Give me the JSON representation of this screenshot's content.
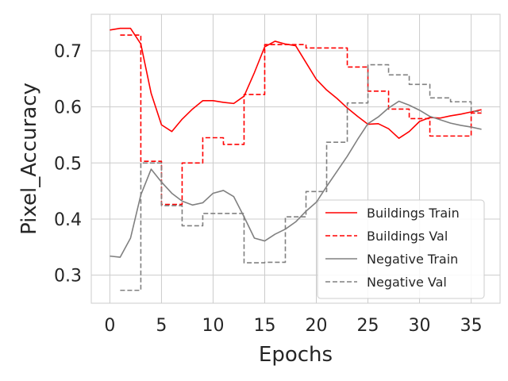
{
  "chart_data": {
    "type": "line",
    "xlabel": "Epochs",
    "ylabel": "Pixel_Accuracy",
    "xlim": [
      -1.8,
      37.8
    ],
    "ylim": [
      0.25,
      0.765
    ],
    "xticks": [
      0,
      5,
      10,
      15,
      20,
      25,
      30,
      35
    ],
    "yticks": [
      0.3,
      0.4,
      0.5,
      0.6,
      0.7
    ],
    "x_tick_labels": [
      "0",
      "5",
      "10",
      "15",
      "20",
      "25",
      "30",
      "35"
    ],
    "y_tick_labels": [
      "0.3",
      "0.4",
      "0.5",
      "0.6",
      "0.7"
    ],
    "grid": true,
    "legend_position": "lower-right",
    "x": [
      0,
      1,
      2,
      3,
      4,
      5,
      6,
      7,
      8,
      9,
      10,
      11,
      12,
      13,
      14,
      15,
      16,
      17,
      18,
      19,
      20,
      21,
      22,
      23,
      24,
      25,
      26,
      27,
      28,
      29,
      30,
      31,
      32,
      33,
      34,
      35,
      36
    ],
    "series": [
      {
        "name": "Buildings Train",
        "color": "#ff0000",
        "dash": "solid",
        "values": [
          0.737,
          0.74,
          0.74,
          0.712,
          0.624,
          0.568,
          0.556,
          0.578,
          0.596,
          0.611,
          0.611,
          0.608,
          0.606,
          0.619,
          0.661,
          0.707,
          0.717,
          0.712,
          0.709,
          0.679,
          0.649,
          0.63,
          0.615,
          0.598,
          0.583,
          0.569,
          0.57,
          0.561,
          0.544,
          0.556,
          0.574,
          0.581,
          0.58,
          0.584,
          0.587,
          0.591,
          0.595
        ]
      },
      {
        "name": "Buildings Val",
        "color": "#ff0000",
        "dash": "dashed",
        "values": [
          null,
          0.728,
          0.728,
          0.503,
          0.503,
          0.426,
          0.426,
          0.5,
          0.5,
          0.545,
          0.545,
          0.533,
          0.533,
          0.622,
          0.622,
          0.711,
          0.711,
          0.711,
          0.711,
          0.705,
          0.705,
          0.705,
          0.705,
          0.671,
          0.671,
          0.628,
          0.628,
          0.596,
          0.596,
          0.579,
          0.579,
          0.548,
          0.548,
          0.548,
          0.548,
          0.589,
          0.589
        ]
      },
      {
        "name": "Negative Train",
        "color": "#808080",
        "dash": "solid",
        "values": [
          0.334,
          0.332,
          0.366,
          0.443,
          0.489,
          0.466,
          0.446,
          0.432,
          0.425,
          0.429,
          0.446,
          0.451,
          0.44,
          0.404,
          0.366,
          0.361,
          0.373,
          0.382,
          0.395,
          0.414,
          0.43,
          0.458,
          0.485,
          0.512,
          0.542,
          0.57,
          0.582,
          0.598,
          0.61,
          0.603,
          0.594,
          0.583,
          0.577,
          0.571,
          0.567,
          0.564,
          0.56
        ]
      },
      {
        "name": "Negative Val",
        "color": "#808080",
        "dash": "dashed",
        "values": [
          null,
          0.273,
          0.273,
          0.5,
          0.5,
          0.424,
          0.424,
          0.388,
          0.388,
          0.41,
          0.41,
          0.41,
          0.41,
          0.322,
          0.322,
          0.323,
          0.323,
          0.404,
          0.404,
          0.449,
          0.449,
          0.537,
          0.537,
          0.607,
          0.607,
          0.675,
          0.675,
          0.657,
          0.657,
          0.64,
          0.64,
          0.616,
          0.616,
          0.609,
          0.609,
          0.592,
          0.592
        ]
      }
    ]
  }
}
